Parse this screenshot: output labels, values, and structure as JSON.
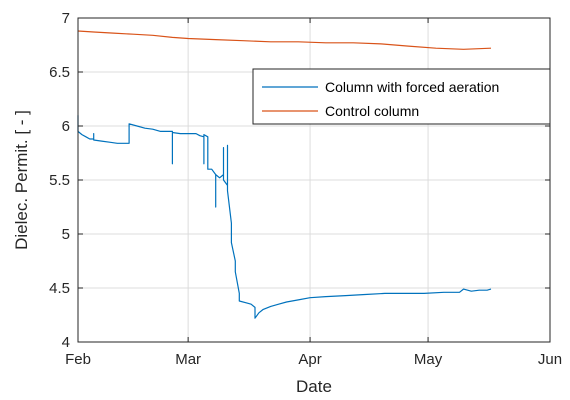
{
  "chart_data": {
    "type": "line",
    "title": "",
    "xlabel": "Date",
    "ylabel": "Dielec. Permit. [ - ]",
    "x_tick_labels": [
      "Feb",
      "Mar",
      "Apr",
      "May",
      "Jun"
    ],
    "x_ticks": [
      "Feb 1",
      "Mar 1",
      "Apr 1",
      "May 1",
      "Jun 1"
    ],
    "y_tick_labels": [
      "4",
      "4.5",
      "5",
      "5.5",
      "6",
      "6.5",
      "7"
    ],
    "ylim": [
      4,
      7
    ],
    "xlim": [
      "Feb 1",
      "Jun 1"
    ],
    "grid": true,
    "legend_position": "top-right",
    "series": [
      {
        "name": "Column with forced aeration",
        "color": "#0072BD",
        "points": [
          [
            "Feb 1",
            6.1
          ],
          [
            "Feb 1",
            5.95
          ],
          [
            "Feb 2",
            5.92
          ],
          [
            "Feb 3",
            5.9
          ],
          [
            "Feb 4",
            5.88
          ],
          [
            "Feb 5",
            5.88
          ],
          [
            "Feb 5",
            5.93
          ],
          [
            "Feb 5",
            5.87
          ],
          [
            "Feb 7",
            5.86
          ],
          [
            "Feb 9",
            5.85
          ],
          [
            "Feb 11",
            5.84
          ],
          [
            "Feb 13",
            5.84
          ],
          [
            "Feb 14",
            5.84
          ],
          [
            "Feb 14",
            6.02
          ],
          [
            "Feb 16",
            6.0
          ],
          [
            "Feb 18",
            5.98
          ],
          [
            "Feb 20",
            5.97
          ],
          [
            "Feb 22",
            5.95
          ],
          [
            "Feb 24",
            5.95
          ],
          [
            "Feb 25",
            5.95
          ],
          [
            "Feb 25",
            5.65
          ],
          [
            "Feb 25",
            5.94
          ],
          [
            "Feb 27",
            5.93
          ],
          [
            "Mar 1",
            5.93
          ],
          [
            "Mar 3",
            5.93
          ],
          [
            "Mar 4",
            5.91
          ],
          [
            "Mar 5",
            5.9
          ],
          [
            "Mar 5",
            5.65
          ],
          [
            "Mar 5",
            5.92
          ],
          [
            "Mar 6",
            5.9
          ],
          [
            "Mar 6",
            5.6
          ],
          [
            "Mar 7",
            5.6
          ],
          [
            "Mar 8",
            5.55
          ],
          [
            "Mar 8",
            5.25
          ],
          [
            "Mar 8",
            5.55
          ],
          [
            "Mar 9",
            5.52
          ],
          [
            "Mar 10",
            5.55
          ],
          [
            "Mar 10",
            5.8
          ],
          [
            "Mar 10",
            5.5
          ],
          [
            "Mar 11",
            5.45
          ],
          [
            "Mar 11",
            5.82
          ],
          [
            "Mar 11",
            5.4
          ],
          [
            "Mar 12",
            5.1
          ],
          [
            "Mar 12",
            4.92
          ],
          [
            "Mar 13",
            4.75
          ],
          [
            "Mar 13",
            4.65
          ],
          [
            "Mar 14",
            4.45
          ],
          [
            "Mar 14",
            4.38
          ],
          [
            "Mar 16",
            4.36
          ],
          [
            "Mar 17",
            4.35
          ],
          [
            "Mar 18",
            4.32
          ],
          [
            "Mar 18",
            4.22
          ],
          [
            "Mar 19",
            4.27
          ],
          [
            "Mar 20",
            4.3
          ],
          [
            "Mar 22",
            4.33
          ],
          [
            "Mar 24",
            4.35
          ],
          [
            "Mar 26",
            4.37
          ],
          [
            "Mar 29",
            4.39
          ],
          [
            "Apr 1",
            4.41
          ],
          [
            "Apr 5",
            4.42
          ],
          [
            "Apr 10",
            4.43
          ],
          [
            "Apr 15",
            4.44
          ],
          [
            "Apr 20",
            4.45
          ],
          [
            "Apr 25",
            4.45
          ],
          [
            "Apr 30",
            4.45
          ],
          [
            "May 5",
            4.46
          ],
          [
            "May 9",
            4.46
          ],
          [
            "May 10",
            4.49
          ],
          [
            "May 12",
            4.47
          ],
          [
            "May 14",
            4.48
          ],
          [
            "May 16",
            4.48
          ],
          [
            "May 17",
            4.49
          ]
        ]
      },
      {
        "name": "Control column",
        "color": "#D95319",
        "points": [
          [
            "Feb 1",
            6.88
          ],
          [
            "Feb 5",
            6.87
          ],
          [
            "Feb 10",
            6.86
          ],
          [
            "Feb 15",
            6.85
          ],
          [
            "Feb 20",
            6.84
          ],
          [
            "Feb 25",
            6.82
          ],
          [
            "Mar 1",
            6.81
          ],
          [
            "Mar 8",
            6.8
          ],
          [
            "Mar 15",
            6.79
          ],
          [
            "Mar 22",
            6.78
          ],
          [
            "Mar 29",
            6.78
          ],
          [
            "Apr 5",
            6.77
          ],
          [
            "Apr 12",
            6.77
          ],
          [
            "Apr 19",
            6.76
          ],
          [
            "Apr 26",
            6.74
          ],
          [
            "May 3",
            6.72
          ],
          [
            "May 10",
            6.71
          ],
          [
            "May 17",
            6.72
          ]
        ]
      }
    ]
  }
}
